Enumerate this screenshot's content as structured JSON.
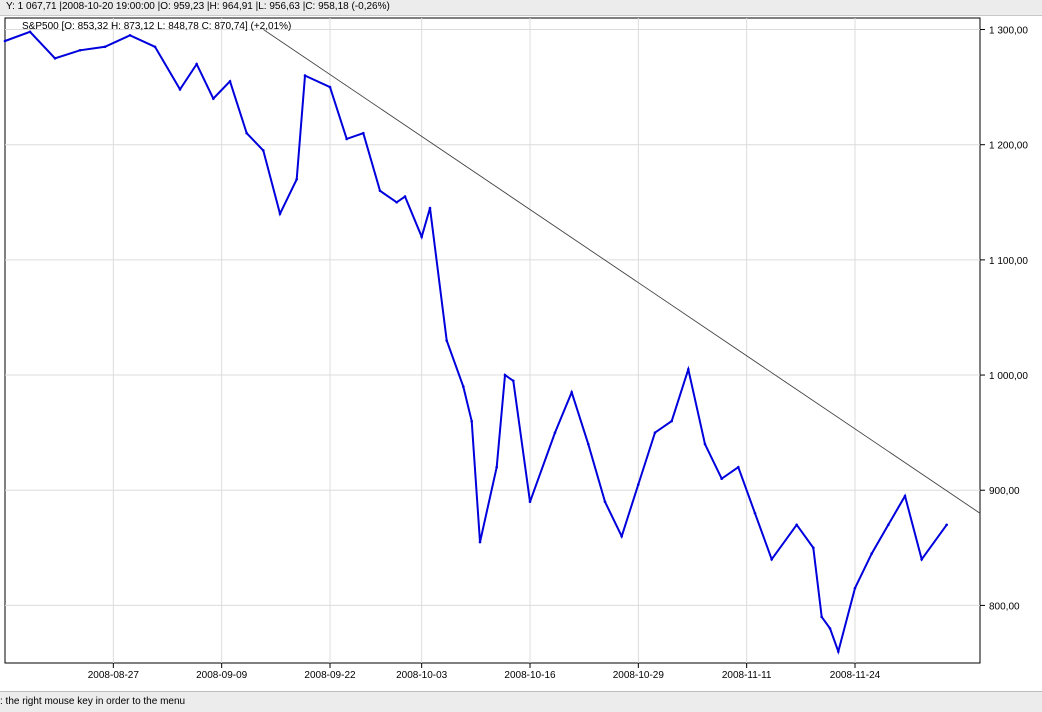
{
  "info_bar": {
    "text": "Y: 1 067,71 |2008-10-20 19:00:00 |O: 959,23 |H: 964,91 |L: 956,63 |C: 958,18 (-0,26%)"
  },
  "status_bar": {
    "text": ": the right mouse key in order to the menu"
  },
  "chart_data": {
    "type": "line",
    "legend": "S&P500 [O: 853,32  H: 873,12  L: 848,78  C: 870,74]  (+2,01%)",
    "x": [
      "2008-08-14",
      "2008-08-17",
      "2008-08-20",
      "2008-08-23",
      "2008-08-26",
      "2008-08-29",
      "2008-09-01",
      "2008-09-04",
      "2008-09-06",
      "2008-09-08",
      "2008-09-10",
      "2008-09-12",
      "2008-09-14",
      "2008-09-16",
      "2008-09-18",
      "2008-09-19",
      "2008-09-22",
      "2008-09-24",
      "2008-09-26",
      "2008-09-28",
      "2008-09-30",
      "2008-10-01",
      "2008-10-03",
      "2008-10-04",
      "2008-10-06",
      "2008-10-08",
      "2008-10-09",
      "2008-10-10",
      "2008-10-12",
      "2008-10-13",
      "2008-10-14",
      "2008-10-16",
      "2008-10-19",
      "2008-10-21",
      "2008-10-23",
      "2008-10-25",
      "2008-10-27",
      "2008-10-29",
      "2008-10-31",
      "2008-11-02",
      "2008-11-04",
      "2008-11-06",
      "2008-11-08",
      "2008-11-10",
      "2008-11-12",
      "2008-11-14",
      "2008-11-17",
      "2008-11-19",
      "2008-11-20",
      "2008-11-21",
      "2008-11-22",
      "2008-11-24",
      "2008-11-26",
      "2008-11-28",
      "2008-11-30",
      "2008-12-02",
      "2008-12-05"
    ],
    "y": [
      1290,
      1298,
      1275,
      1282,
      1285,
      1295,
      1285,
      1248,
      1270,
      1240,
      1255,
      1210,
      1195,
      1140,
      1170,
      1260,
      1250,
      1205,
      1210,
      1160,
      1150,
      1155,
      1120,
      1145,
      1030,
      990,
      960,
      855,
      920,
      1000,
      995,
      890,
      950,
      985,
      940,
      890,
      860,
      905,
      950,
      960,
      1005,
      940,
      910,
      920,
      880,
      840,
      870,
      850,
      790,
      780,
      760,
      815,
      845,
      870,
      895,
      840,
      870
    ],
    "ylim": [
      750,
      1310
    ],
    "y_ticks": [
      800,
      900,
      1000,
      1100,
      1200,
      1300
    ],
    "y_tick_labels": [
      "800,00",
      "900,00",
      "1 000,00",
      "1 100,00",
      "1 200,00",
      "1 300,00"
    ],
    "x_ticks": [
      "2008-08-27",
      "2008-09-09",
      "2008-09-22",
      "2008-10-03",
      "2008-10-16",
      "2008-10-29",
      "2008-11-11",
      "2008-11-24"
    ],
    "x_range": [
      "2008-08-14",
      "2008-12-09"
    ],
    "trendline": {
      "x": [
        "2008-09-14",
        "2008-12-09"
      ],
      "y": [
        1300,
        880
      ]
    },
    "grid": true,
    "series_color": "#0000dd",
    "trendline_color": "#444444"
  }
}
